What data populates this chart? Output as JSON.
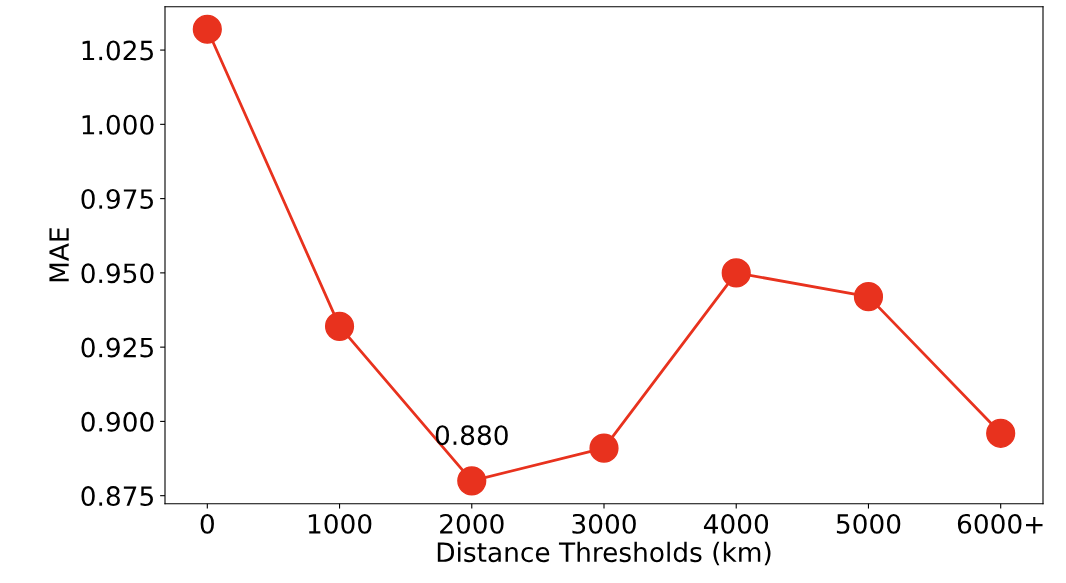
{
  "chart_data": {
    "type": "line",
    "xlabel": "Distance Thresholds (km)",
    "ylabel": "MAE",
    "categories": [
      "0",
      "1000",
      "2000",
      "3000",
      "4000",
      "5000",
      "6000+"
    ],
    "series": [
      {
        "color": "#e8321e",
        "values": [
          1.032,
          0.932,
          0.88,
          0.891,
          0.95,
          0.942,
          0.896
        ]
      }
    ],
    "ylim": [
      0.8723,
      1.0396
    ],
    "yticks": [
      {
        "value": 0.875,
        "label": "0.875"
      },
      {
        "value": 0.9,
        "label": "0.900"
      },
      {
        "value": 0.925,
        "label": "0.925"
      },
      {
        "value": 0.95,
        "label": "0.950"
      },
      {
        "value": 0.975,
        "label": "0.975"
      },
      {
        "value": 1.0,
        "label": "1.000"
      },
      {
        "value": 1.025,
        "label": "1.025"
      }
    ],
    "annotations": [
      {
        "text": "0.880",
        "x": "2000",
        "y": 0.88
      }
    ],
    "marker": "circle",
    "line_style": "solid",
    "grid": false,
    "legend": false
  }
}
